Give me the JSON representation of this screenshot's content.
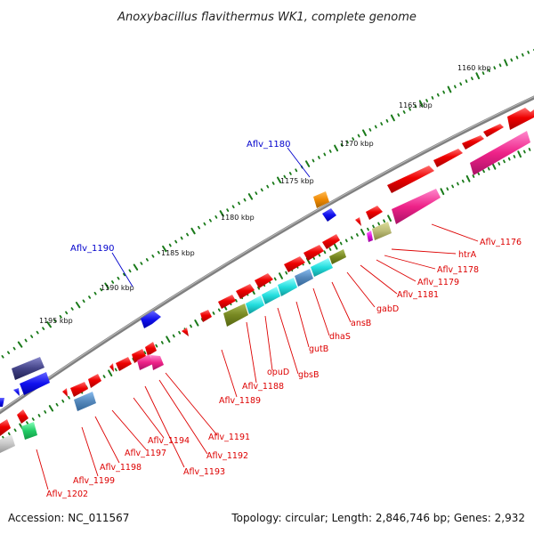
{
  "title": "Anoxybacillus flavithermus WK1, complete genome",
  "accession": "Accession: NC_011567",
  "topology": "Topology: circular; Length: 2,846,746 bp; Genes: 2,932",
  "kbp_ticks": [
    "1160 kbp",
    "1165 kbp",
    "1170 kbp",
    "1175 kbp",
    "1180 kbp",
    "1185 kbp",
    "1190 kbp",
    "1195 kbp"
  ],
  "blue_labels": [
    "Aflv_1180",
    "Aflv_1190"
  ],
  "red_labels": [
    "Aflv_1176",
    "htrA",
    "Aflv_1178",
    "Aflv_1179",
    "Aflv_1181",
    "gabD",
    "ansB",
    "dhaS",
    "gutB",
    "gbsB",
    "opuD",
    "Aflv_1188",
    "Aflv_1189",
    "Aflv_1191",
    "Aflv_1192",
    "Aflv_1193",
    "Aflv_1194",
    "Aflv_1197",
    "Aflv_1198",
    "Aflv_1199",
    "Aflv_1202"
  ],
  "colors": {
    "backbone": "#808080",
    "tick_dots": "#1a7a1a",
    "forward_gene": "#ee0000",
    "label_red": "#dd0000",
    "label_blue": "#0000cc",
    "pink": "#ee2288",
    "cyan": "#22dddd",
    "olive": "#778822",
    "steel": "#5588bb",
    "navy": "#2222bb",
    "orange": "#ee8800",
    "khaki": "#bbbb77",
    "grey": "#c8c8c8",
    "green": "#22cc66"
  }
}
